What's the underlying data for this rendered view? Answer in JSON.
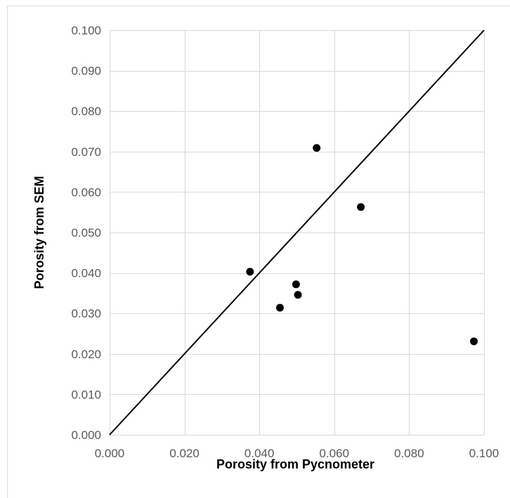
{
  "chart_data": {
    "type": "scatter",
    "title": "",
    "xlabel": "Porosity from Pycnometer",
    "ylabel": "Porosity from SEM",
    "xlim": [
      0.0,
      0.1
    ],
    "ylim": [
      0.0,
      0.1
    ],
    "x_ticks": [
      "0.000",
      "0.020",
      "0.040",
      "0.060",
      "0.080",
      "0.100"
    ],
    "y_ticks": [
      "0.000",
      "0.010",
      "0.020",
      "0.030",
      "0.040",
      "0.050",
      "0.060",
      "0.070",
      "0.080",
      "0.090",
      "0.100"
    ],
    "grid": true,
    "legend": "none",
    "series": [
      {
        "type": "scatter",
        "color": "#000000",
        "points": [
          {
            "x": 0.0375,
            "y": 0.0403
          },
          {
            "x": 0.0455,
            "y": 0.0314
          },
          {
            "x": 0.0498,
            "y": 0.0372
          },
          {
            "x": 0.0503,
            "y": 0.0346
          },
          {
            "x": 0.0553,
            "y": 0.0709
          },
          {
            "x": 0.0671,
            "y": 0.0563
          },
          {
            "x": 0.0973,
            "y": 0.0231
          }
        ]
      },
      {
        "type": "line",
        "color": "#000000",
        "points": [
          {
            "x": 0.0,
            "y": 0.0
          },
          {
            "x": 0.1,
            "y": 0.1
          }
        ]
      }
    ],
    "colors": {
      "grid": "#d9d9d9",
      "tick_text": "#595959",
      "marker": "#000000",
      "line": "#000000",
      "frame": "#d9d9d9"
    }
  }
}
